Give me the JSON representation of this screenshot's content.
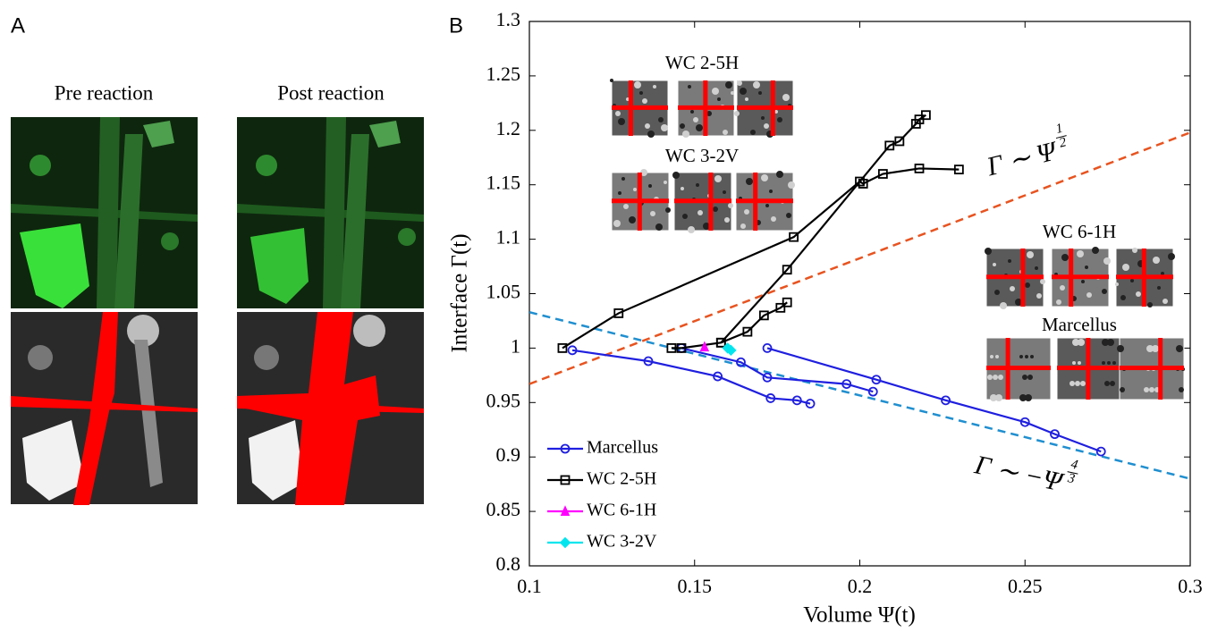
{
  "panel_a": {
    "label": "A",
    "pre": "Pre reaction",
    "post": "Post reaction"
  },
  "chart_data": {
    "type": "line",
    "panel_label": "B",
    "xlabel": "Volume Ψ(t)",
    "ylabel": "Interface Γ(t)",
    "xlim": [
      0.1,
      0.3
    ],
    "ylim": [
      0.8,
      1.3
    ],
    "xticks": [
      0.1,
      0.15,
      0.2,
      0.25,
      0.3
    ],
    "yticks": [
      0.8,
      0.85,
      0.9,
      0.95,
      1,
      1.05,
      1.1,
      1.15,
      1.2,
      1.25,
      1.3
    ],
    "legend": "lower left",
    "series": [
      {
        "name": "Marcellus",
        "color": "#1f1fe0",
        "marker": "circle",
        "x": [
          0.113,
          0.136,
          0.157,
          0.173,
          0.181,
          0.185,
          null,
          0.146,
          0.164,
          0.172,
          0.196,
          0.204,
          null,
          0.172,
          0.205,
          0.226,
          0.25,
          0.259,
          0.273
        ],
        "values": [
          0.998,
          0.988,
          0.974,
          0.954,
          0.952,
          0.949,
          null,
          1.0,
          0.987,
          0.973,
          0.967,
          0.96,
          null,
          1.0,
          0.971,
          0.952,
          0.932,
          0.921,
          0.905
        ]
      },
      {
        "name": "WC 2-5H",
        "color": "#000000",
        "marker": "square",
        "x": [
          0.11,
          0.127,
          0.18,
          0.2,
          0.201,
          0.207,
          0.218,
          0.23,
          null,
          0.158,
          0.178,
          0.209,
          0.212,
          0.217,
          0.218,
          0.22,
          null,
          0.143,
          0.146,
          0.158,
          0.166,
          0.171,
          0.176,
          0.178
        ],
        "values": [
          1.0,
          1.032,
          1.102,
          1.153,
          1.151,
          1.16,
          1.165,
          1.164,
          null,
          1.005,
          1.072,
          1.186,
          1.19,
          1.206,
          1.21,
          1.214,
          null,
          1.0,
          1.0,
          1.005,
          1.015,
          1.03,
          1.037,
          1.042
        ]
      },
      {
        "name": "WC 6-1H",
        "color": "#ff00ff",
        "marker": "triangle",
        "x": [
          0.153
        ],
        "values": [
          1.001
        ]
      },
      {
        "name": "WC 3-2V",
        "color": "#00e5ee",
        "marker": "diamond",
        "x": [
          0.16,
          0.161
        ],
        "values": [
          1.0,
          0.998
        ]
      }
    ],
    "reference_lines": [
      {
        "color": "#e8531f",
        "x": [
          0.1,
          0.3
        ],
        "values": [
          0.967,
          1.198
        ],
        "label": "Γ ∼ Ψ",
        "exponent": "1/2"
      },
      {
        "color": "#1f8fd0",
        "x": [
          0.1,
          0.3
        ],
        "values": [
          1.033,
          0.88
        ],
        "label": "Γ ∼ −Ψ",
        "exponent": "4/3"
      }
    ],
    "insets": [
      {
        "label": "WC 2-5H"
      },
      {
        "label": "WC 3-2V"
      },
      {
        "label": "WC 6-1H"
      },
      {
        "label": "Marcellus"
      }
    ]
  }
}
